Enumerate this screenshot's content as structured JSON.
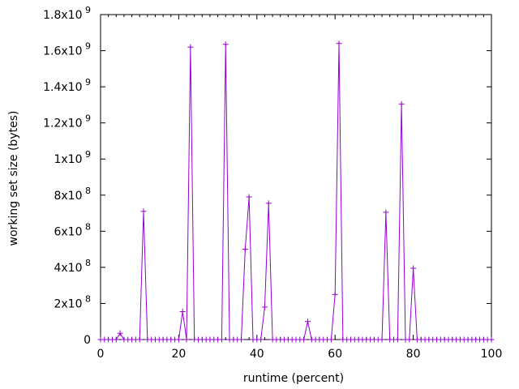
{
  "chart_data": {
    "type": "line",
    "title": "",
    "xlabel": "runtime (percent)",
    "ylabel": "working set size (bytes)",
    "xlim": [
      0,
      100
    ],
    "ylim": [
      0,
      1800000000
    ],
    "grid": false,
    "legend": "none",
    "x_ticks": [
      0,
      20,
      40,
      60,
      80,
      100
    ],
    "x_tick_labels": [
      "0",
      "20",
      "40",
      "60",
      "80",
      "100"
    ],
    "y_ticks": [
      {
        "value": 0,
        "mantissa": "0",
        "exponent": ""
      },
      {
        "value": 200000000,
        "mantissa": "2x10",
        "exponent": "8"
      },
      {
        "value": 400000000,
        "mantissa": "4x10",
        "exponent": "8"
      },
      {
        "value": 600000000,
        "mantissa": "6x10",
        "exponent": "8"
      },
      {
        "value": 800000000,
        "mantissa": "8x10",
        "exponent": "8"
      },
      {
        "value": 1000000000,
        "mantissa": "1x10",
        "exponent": "9"
      },
      {
        "value": 1200000000,
        "mantissa": "1.2x10",
        "exponent": "9"
      },
      {
        "value": 1400000000,
        "mantissa": "1.4x10",
        "exponent": "9"
      },
      {
        "value": 1600000000,
        "mantissa": "1.6x10",
        "exponent": "9"
      },
      {
        "value": 1800000000,
        "mantissa": "1.8x10",
        "exponent": "9"
      }
    ],
    "series": [
      {
        "color": "#9400d3",
        "marker": "plus",
        "x": [
          0,
          1,
          2,
          3,
          4,
          5,
          6,
          7,
          8,
          9,
          10,
          11,
          12,
          13,
          14,
          15,
          16,
          17,
          18,
          19,
          20,
          21,
          22,
          23,
          24,
          25,
          26,
          27,
          28,
          29,
          30,
          31,
          32,
          33,
          34,
          35,
          36,
          37,
          38,
          39,
          40,
          41,
          42,
          43,
          44,
          45,
          46,
          47,
          48,
          49,
          50,
          51,
          52,
          53,
          54,
          55,
          56,
          57,
          58,
          59,
          60,
          61,
          62,
          63,
          64,
          65,
          66,
          67,
          68,
          69,
          70,
          71,
          72,
          73,
          74,
          75,
          76,
          77,
          78,
          79,
          80,
          81,
          82,
          83,
          84,
          85,
          86,
          87,
          88,
          89,
          90,
          91,
          92,
          93,
          94,
          95,
          96,
          97,
          98,
          99,
          100
        ],
        "y": [
          0,
          0,
          0,
          0,
          0,
          35000000,
          0,
          0,
          0,
          0,
          0,
          710000000,
          0,
          0,
          0,
          0,
          0,
          0,
          0,
          0,
          0,
          155000000,
          0,
          1620000000,
          0,
          0,
          0,
          0,
          0,
          0,
          0,
          0,
          1635000000,
          0,
          0,
          0,
          0,
          500000000,
          790000000,
          0,
          0,
          0,
          180000000,
          755000000,
          0,
          0,
          0,
          0,
          0,
          0,
          0,
          0,
          0,
          100000000,
          0,
          0,
          0,
          0,
          0,
          0,
          250000000,
          1640000000,
          0,
          0,
          0,
          0,
          0,
          0,
          0,
          0,
          0,
          0,
          0,
          705000000,
          0,
          0,
          0,
          1305000000,
          0,
          0,
          395000000,
          0,
          0,
          0,
          0,
          0,
          0,
          0,
          0,
          0,
          0,
          0,
          0,
          0,
          0,
          0,
          0,
          0,
          0,
          0,
          0
        ]
      }
    ]
  }
}
